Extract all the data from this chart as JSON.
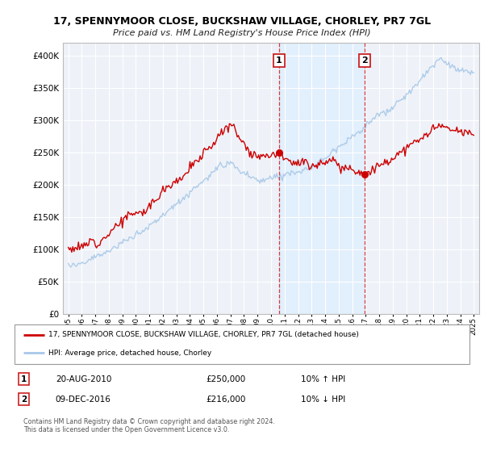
{
  "title1": "17, SPENNYMOOR CLOSE, BUCKSHAW VILLAGE, CHORLEY, PR7 7GL",
  "title2": "Price paid vs. HM Land Registry's House Price Index (HPI)",
  "legend_line1": "17, SPENNYMOOR CLOSE, BUCKSHAW VILLAGE, CHORLEY, PR7 7GL (detached house)",
  "legend_line2": "HPI: Average price, detached house, Chorley",
  "transaction1_date": "20-AUG-2010",
  "transaction1_price": "£250,000",
  "transaction1_hpi": "10% ↑ HPI",
  "transaction2_date": "09-DEC-2016",
  "transaction2_price": "£216,000",
  "transaction2_hpi": "10% ↓ HPI",
  "footer": "Contains HM Land Registry data © Crown copyright and database right 2024.\nThis data is licensed under the Open Government Licence v3.0.",
  "ylim": [
    0,
    420000
  ],
  "yticks": [
    0,
    50000,
    100000,
    150000,
    200000,
    250000,
    300000,
    350000,
    400000
  ],
  "year_start": 1995,
  "year_end": 2025,
  "vline1_year": 2010.6,
  "vline2_year": 2016.92,
  "dot1_year": 2010.6,
  "dot1_value": 250000,
  "dot2_year": 2016.92,
  "dot2_value": 216000,
  "red_color": "#cc0000",
  "blue_color": "#a8c8e8",
  "shade_color": "#ddeeff",
  "bg_plot": "#eef2f8",
  "bg_fig": "#ffffff",
  "grid_color": "#ffffff"
}
